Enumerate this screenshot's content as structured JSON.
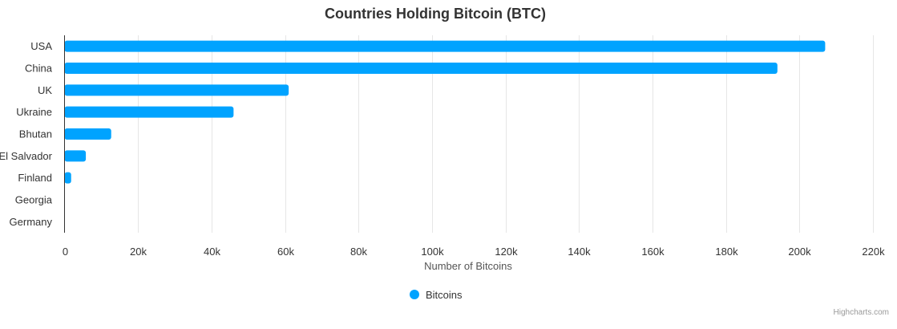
{
  "chart_data": {
    "type": "bar",
    "orientation": "horizontal",
    "title": "Countries Holding Bitcoin (BTC)",
    "xlabel": "Number of Bitcoins",
    "ylabel": "",
    "categories": [
      "USA",
      "China",
      "UK",
      "Ukraine",
      "Bhutan",
      "El Salvador",
      "Finland",
      "Georgia",
      "Germany"
    ],
    "series": [
      {
        "name": "Bitcoins",
        "color": "#00a3ff",
        "values": [
          207000,
          194000,
          61000,
          46000,
          12700,
          5800,
          1800,
          66,
          0
        ]
      }
    ],
    "xlim": [
      0,
      220000
    ],
    "xticks": [
      0,
      20000,
      40000,
      60000,
      80000,
      100000,
      120000,
      140000,
      160000,
      180000,
      200000,
      220000
    ],
    "xtick_labels": [
      "0",
      "20k",
      "40k",
      "60k",
      "80k",
      "100k",
      "120k",
      "140k",
      "160k",
      "180k",
      "200k",
      "220k"
    ],
    "grid": true,
    "legend": "bottom-center",
    "credits": "Highcharts.com"
  }
}
